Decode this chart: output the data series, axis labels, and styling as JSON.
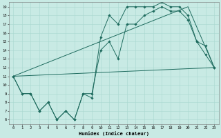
{
  "xlabel": "Humidex (Indice chaleur)",
  "bg_color": "#c8eae4",
  "line_color": "#1e6b5e",
  "grid_color": "#a8d8d0",
  "xlim": [
    -0.5,
    23.5
  ],
  "ylim": [
    5.5,
    19.5
  ],
  "yticks": [
    6,
    7,
    8,
    9,
    10,
    11,
    12,
    13,
    14,
    15,
    16,
    17,
    18,
    19
  ],
  "xticks": [
    0,
    1,
    2,
    3,
    4,
    5,
    6,
    7,
    8,
    9,
    10,
    11,
    12,
    13,
    14,
    15,
    16,
    17,
    18,
    19,
    20,
    21,
    22,
    23
  ],
  "line1_x": [
    0,
    1,
    2,
    3,
    4,
    5,
    6,
    7,
    8,
    9,
    10,
    11,
    12,
    13,
    14,
    15,
    16,
    17,
    18,
    19,
    20,
    21,
    22,
    23
  ],
  "line1_y": [
    11,
    9,
    9,
    7,
    8,
    6,
    7,
    6,
    9,
    8.5,
    15.5,
    18,
    17,
    19,
    19,
    19,
    19,
    19.5,
    19,
    19,
    18,
    15,
    14.5,
    12
  ],
  "line2_x": [
    0,
    1,
    2,
    3,
    4,
    5,
    6,
    7,
    8,
    9,
    10,
    11,
    12,
    13,
    14,
    15,
    16,
    17,
    18,
    19,
    20,
    21,
    22,
    23
  ],
  "line2_y": [
    11,
    9,
    9,
    7,
    8,
    6,
    7,
    6,
    9,
    9,
    14,
    15,
    13,
    17,
    17,
    18,
    18.5,
    19,
    18.5,
    18.5,
    17.5,
    15,
    13.5,
    12
  ],
  "line3_x": [
    0,
    23
  ],
  "line3_y": [
    11,
    12
  ],
  "line4_x": [
    0,
    20,
    23
  ],
  "line4_y": [
    11,
    19,
    12
  ]
}
